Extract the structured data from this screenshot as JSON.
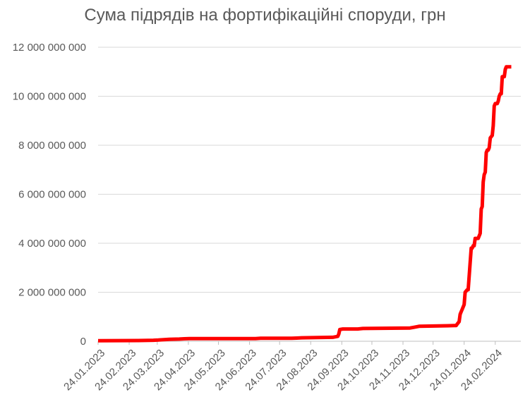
{
  "chart_data": {
    "type": "line",
    "title": "Сума підрядів на фортифікаційні споруди, грн",
    "xlabel": "",
    "ylabel": "",
    "ylim": [
      0,
      12000000000
    ],
    "y_ticks": [
      0,
      2000000000,
      4000000000,
      6000000000,
      8000000000,
      10000000000,
      12000000000
    ],
    "y_tick_labels": [
      "0",
      "2 000 000 000",
      "4 000 000 000",
      "6 000 000 000",
      "8 000 000 000",
      "10 000 000 000",
      "12 000 000 000"
    ],
    "x_tick_labels": [
      "24.01.2023",
      "24.02.2023",
      "24.03.2023",
      "24.04.2023",
      "24.05.2023",
      "24.06.2023",
      "24.07.2023",
      "24.08.2023",
      "24.09.2023",
      "24.10.2023",
      "24.11.2023",
      "24.12.2023",
      "24.01.2024",
      "24.02.2024"
    ],
    "x_tick_days": [
      0,
      31,
      59,
      90,
      120,
      151,
      181,
      212,
      243,
      273,
      304,
      334,
      365,
      396
    ],
    "x_end_day": 412,
    "grid": true,
    "line_color": "#ff0000",
    "series": [
      {
        "x": [
          "24.01.2023",
          "05.03.2023",
          "20.03.2023",
          "25.03.2023",
          "05.04.2023",
          "15.04.2023",
          "20.04.2023",
          "25.04.2023",
          "30.06.2023",
          "05.07.2023",
          "05.08.2023",
          "10.08.2023",
          "15.08.2023",
          "15.09.2023",
          "20.09.2023",
          "21.09.2023",
          "22.09.2023",
          "25.09.2023",
          "10.10.2023",
          "15.10.2023",
          "01.12.2023",
          "05.12.2023",
          "10.12.2023",
          "14.01.2024",
          "16.01.2024",
          "17.01.2024",
          "19.01.2024",
          "20.01.2024",
          "21.01.2024",
          "22.01.2024",
          "24.01.2024",
          "25.01.2024",
          "27.01.2024",
          "28.01.2024",
          "31.01.2024",
          "01.02.2024",
          "02.02.2024",
          "03.02.2024",
          "04.02.2024",
          "05.02.2024",
          "06.02.2024",
          "07.02.2024",
          "08.02.2024",
          "09.02.2024",
          "10.02.2024",
          "11.02.2024",
          "12.02.2024",
          "13.02.2024",
          "14.02.2024",
          "15.02.2024",
          "16.02.2024",
          "17.02.2024",
          "18.02.2024",
          "19.02.2024",
          "21.02.2024",
          "22.02.2024",
          "23.02.2024",
          "24.02.2024",
          "25.02.2024",
          "26.02.2024",
          "27.02.2024",
          "28.02.2024",
          "29.02.2024",
          "01.03.2024",
          "02.03.2024",
          "03.03.2024",
          "04.03.2024",
          "05.03.2024",
          "06.03.2024",
          "07.03.2024",
          "08.03.2024",
          "09.03.2024",
          "10.03.2024",
          "11.03.2024"
        ],
        "values": [
          20000000,
          30000000,
          40000000,
          50000000,
          80000000,
          90000000,
          100000000,
          110000000,
          110000000,
          120000000,
          120000000,
          130000000,
          140000000,
          160000000,
          200000000,
          300000000,
          480000000,
          500000000,
          500000000,
          520000000,
          540000000,
          570000000,
          610000000,
          640000000,
          640000000,
          700000000,
          800000000,
          1100000000,
          1200000000,
          1300000000,
          1500000000,
          2000000000,
          2100000000,
          2100000000,
          3800000000,
          3800000000,
          3900000000,
          3900000000,
          4200000000,
          4200000000,
          4200000000,
          4200000000,
          4300000000,
          4400000000,
          5400000000,
          5500000000,
          6500000000,
          6800000000,
          6900000000,
          7700000000,
          7800000000,
          7800000000,
          7900000000,
          8300000000,
          8400000000,
          8800000000,
          9600000000,
          9700000000,
          9700000000,
          9700000000,
          9800000000,
          10000000000,
          10100000000,
          10100000000,
          10800000000,
          10800000000,
          10800000000,
          11100000000,
          11200000000,
          11200000000,
          11200000000,
          11200000000,
          11200000000,
          11200000000
        ]
      }
    ]
  }
}
